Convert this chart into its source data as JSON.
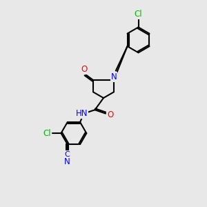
{
  "bg_color": "#e8e8e8",
  "bond_color": "#000000",
  "bond_width": 1.5,
  "atom_colors": {
    "N": "#0000ff",
    "O": "#ff0000",
    "Cl": "#00bb00",
    "C_cyan": "#0000ff",
    "default": "#000000"
  },
  "font_size_atom": 8.5,
  "font_size_H": 8.5,
  "font_size_Cl": 8.5,
  "font_size_C": 8.0,
  "ring_r": 0.62,
  "pent_r": 0.58
}
